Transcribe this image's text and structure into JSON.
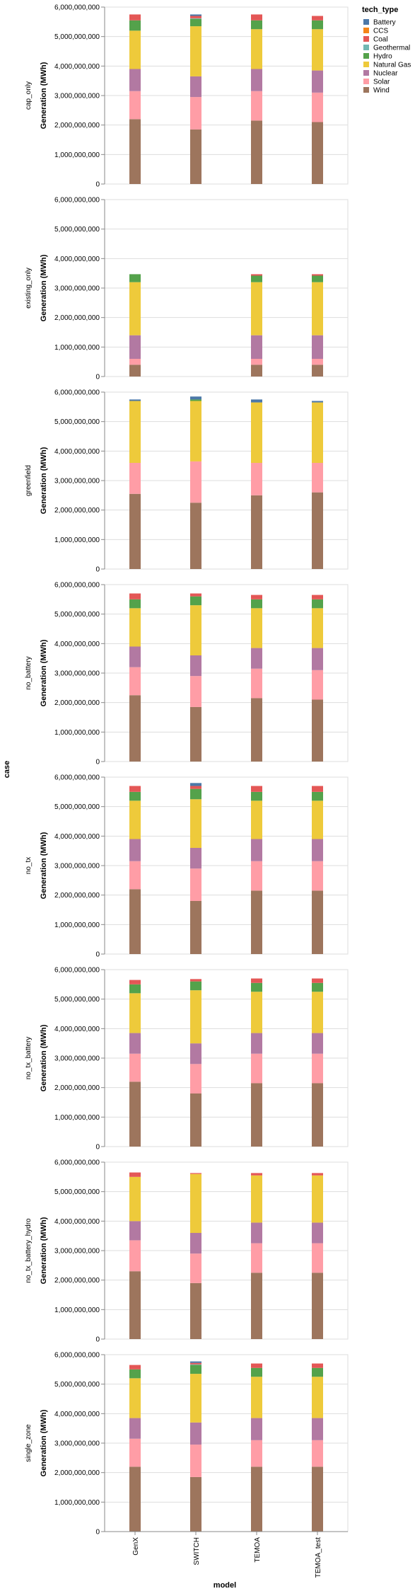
{
  "chart_data": {
    "type": "bar",
    "stacked": true,
    "faceted_by": "case",
    "x_title": "model",
    "y_title": "Generation (MWh)",
    "row_title": "case",
    "legend_title": "tech_type",
    "legend_position": "top-right",
    "grid": true,
    "ylim": [
      0,
      6000000000
    ],
    "y_ticks": [
      0,
      1000000000,
      2000000000,
      3000000000,
      4000000000,
      5000000000,
      6000000000
    ],
    "y_tick_labels": [
      "0",
      "1,000,000,000",
      "2,000,000,000",
      "3,000,000,000",
      "4,000,000,000",
      "5,000,000,000",
      "6,000,000,000"
    ],
    "categories": [
      "GenX",
      "SWITCH",
      "TEMOA",
      "TEMOA_test"
    ],
    "stack_order": [
      "Wind",
      "Solar",
      "Nuclear",
      "Natural Gas",
      "Hydro",
      "Geothermal",
      "Coal",
      "CCS",
      "Battery"
    ],
    "tech_types": [
      {
        "name": "Battery",
        "color": "#4c78a8"
      },
      {
        "name": "CCS",
        "color": "#f58518"
      },
      {
        "name": "Coal",
        "color": "#e45756"
      },
      {
        "name": "Geothermal",
        "color": "#72b7b2"
      },
      {
        "name": "Hydro",
        "color": "#54a24b"
      },
      {
        "name": "Natural Gas",
        "color": "#eeca3b"
      },
      {
        "name": "Nuclear",
        "color": "#b279a2"
      },
      {
        "name": "Solar",
        "color": "#ff9da6"
      },
      {
        "name": "Wind",
        "color": "#9d755d"
      }
    ],
    "facets": [
      {
        "case": "cap_only",
        "bars": [
          {
            "model": "GenX",
            "values": {
              "Wind": 2200000000,
              "Solar": 950000000,
              "Nuclear": 750000000,
              "Natural Gas": 1300000000,
              "Hydro": 350000000,
              "Geothermal": 0,
              "Coal": 200000000,
              "CCS": 0,
              "Battery": 0
            }
          },
          {
            "model": "SWITCH",
            "values": {
              "Wind": 1850000000,
              "Solar": 1100000000,
              "Nuclear": 700000000,
              "Natural Gas": 1700000000,
              "Hydro": 250000000,
              "Geothermal": 20000000,
              "Coal": 80000000,
              "CCS": 0,
              "Battery": 50000000
            }
          },
          {
            "model": "TEMOA",
            "values": {
              "Wind": 2150000000,
              "Solar": 1000000000,
              "Nuclear": 750000000,
              "Natural Gas": 1350000000,
              "Hydro": 300000000,
              "Geothermal": 0,
              "Coal": 200000000,
              "CCS": 0,
              "Battery": 0
            }
          },
          {
            "model": "TEMOA_test",
            "values": {
              "Wind": 2100000000,
              "Solar": 1000000000,
              "Nuclear": 750000000,
              "Natural Gas": 1400000000,
              "Hydro": 300000000,
              "Geothermal": 0,
              "Coal": 150000000,
              "CCS": 0,
              "Battery": 0
            }
          }
        ]
      },
      {
        "case": "existing_only",
        "bars": [
          {
            "model": "GenX",
            "values": {
              "Wind": 400000000,
              "Solar": 200000000,
              "Nuclear": 800000000,
              "Natural Gas": 1800000000,
              "Hydro": 270000000,
              "Geothermal": 0,
              "Coal": 0,
              "CCS": 0,
              "Battery": 0
            }
          },
          {
            "model": "SWITCH",
            "values": {
              "Wind": 0,
              "Solar": 0,
              "Nuclear": 0,
              "Natural Gas": 0,
              "Hydro": 0,
              "Geothermal": 0,
              "Coal": 0,
              "CCS": 0,
              "Battery": 0
            }
          },
          {
            "model": "TEMOA",
            "values": {
              "Wind": 400000000,
              "Solar": 200000000,
              "Nuclear": 800000000,
              "Natural Gas": 1800000000,
              "Hydro": 220000000,
              "Geothermal": 0,
              "Coal": 50000000,
              "CCS": 0,
              "Battery": 0
            }
          },
          {
            "model": "TEMOA_test",
            "values": {
              "Wind": 400000000,
              "Solar": 200000000,
              "Nuclear": 800000000,
              "Natural Gas": 1800000000,
              "Hydro": 220000000,
              "Geothermal": 0,
              "Coal": 50000000,
              "CCS": 0,
              "Battery": 0
            }
          }
        ]
      },
      {
        "case": "greenfield",
        "bars": [
          {
            "model": "GenX",
            "values": {
              "Wind": 2550000000,
              "Solar": 1050000000,
              "Nuclear": 0,
              "Natural Gas": 2100000000,
              "Hydro": 0,
              "Geothermal": 0,
              "Coal": 0,
              "CCS": 0,
              "Battery": 50000000
            }
          },
          {
            "model": "SWITCH",
            "values": {
              "Wind": 2250000000,
              "Solar": 1400000000,
              "Nuclear": 0,
              "Natural Gas": 2050000000,
              "Hydro": 50000000,
              "Geothermal": 0,
              "Coal": 0,
              "CCS": 0,
              "Battery": 100000000
            }
          },
          {
            "model": "TEMOA",
            "values": {
              "Wind": 2500000000,
              "Solar": 1100000000,
              "Nuclear": 0,
              "Natural Gas": 2050000000,
              "Hydro": 0,
              "Geothermal": 0,
              "Coal": 0,
              "CCS": 0,
              "Battery": 100000000
            }
          },
          {
            "model": "TEMOA_test",
            "values": {
              "Wind": 2600000000,
              "Solar": 1000000000,
              "Nuclear": 0,
              "Natural Gas": 2050000000,
              "Hydro": 0,
              "Geothermal": 0,
              "Coal": 0,
              "CCS": 0,
              "Battery": 50000000
            }
          }
        ]
      },
      {
        "case": "no_battery",
        "bars": [
          {
            "model": "GenX",
            "values": {
              "Wind": 2250000000,
              "Solar": 950000000,
              "Nuclear": 700000000,
              "Natural Gas": 1300000000,
              "Hydro": 300000000,
              "Geothermal": 0,
              "Coal": 200000000,
              "CCS": 0,
              "Battery": 0
            }
          },
          {
            "model": "SWITCH",
            "values": {
              "Wind": 1850000000,
              "Solar": 1050000000,
              "Nuclear": 700000000,
              "Natural Gas": 1700000000,
              "Hydro": 300000000,
              "Geothermal": 0,
              "Coal": 100000000,
              "CCS": 0,
              "Battery": 0
            }
          },
          {
            "model": "TEMOA",
            "values": {
              "Wind": 2150000000,
              "Solar": 1000000000,
              "Nuclear": 700000000,
              "Natural Gas": 1350000000,
              "Hydro": 300000000,
              "Geothermal": 0,
              "Coal": 150000000,
              "CCS": 0,
              "Battery": 0
            }
          },
          {
            "model": "TEMOA_test",
            "values": {
              "Wind": 2100000000,
              "Solar": 1000000000,
              "Nuclear": 750000000,
              "Natural Gas": 1350000000,
              "Hydro": 300000000,
              "Geothermal": 0,
              "Coal": 150000000,
              "CCS": 0,
              "Battery": 0
            }
          }
        ]
      },
      {
        "case": "no_tx",
        "bars": [
          {
            "model": "GenX",
            "values": {
              "Wind": 2200000000,
              "Solar": 950000000,
              "Nuclear": 750000000,
              "Natural Gas": 1300000000,
              "Hydro": 300000000,
              "Geothermal": 0,
              "Coal": 200000000,
              "CCS": 0,
              "Battery": 0
            }
          },
          {
            "model": "SWITCH",
            "values": {
              "Wind": 1800000000,
              "Solar": 1100000000,
              "Nuclear": 700000000,
              "Natural Gas": 1650000000,
              "Hydro": 350000000,
              "Geothermal": 0,
              "Coal": 100000000,
              "CCS": 0,
              "Battery": 100000000
            }
          },
          {
            "model": "TEMOA",
            "values": {
              "Wind": 2150000000,
              "Solar": 1000000000,
              "Nuclear": 750000000,
              "Natural Gas": 1300000000,
              "Hydro": 300000000,
              "Geothermal": 0,
              "Coal": 200000000,
              "CCS": 0,
              "Battery": 0
            }
          },
          {
            "model": "TEMOA_test",
            "values": {
              "Wind": 2150000000,
              "Solar": 1000000000,
              "Nuclear": 750000000,
              "Natural Gas": 1300000000,
              "Hydro": 300000000,
              "Geothermal": 0,
              "Coal": 200000000,
              "CCS": 0,
              "Battery": 0
            }
          }
        ]
      },
      {
        "case": "no_tx_battery",
        "bars": [
          {
            "model": "GenX",
            "values": {
              "Wind": 2200000000,
              "Solar": 950000000,
              "Nuclear": 700000000,
              "Natural Gas": 1350000000,
              "Hydro": 300000000,
              "Geothermal": 0,
              "Coal": 150000000,
              "CCS": 0,
              "Battery": 0
            }
          },
          {
            "model": "SWITCH",
            "values": {
              "Wind": 1800000000,
              "Solar": 1000000000,
              "Nuclear": 700000000,
              "Natural Gas": 1800000000,
              "Hydro": 300000000,
              "Geothermal": 0,
              "Coal": 80000000,
              "CCS": 0,
              "Battery": 0
            }
          },
          {
            "model": "TEMOA",
            "values": {
              "Wind": 2150000000,
              "Solar": 1000000000,
              "Nuclear": 700000000,
              "Natural Gas": 1400000000,
              "Hydro": 300000000,
              "Geothermal": 0,
              "Coal": 150000000,
              "CCS": 0,
              "Battery": 0
            }
          },
          {
            "model": "TEMOA_test",
            "values": {
              "Wind": 2150000000,
              "Solar": 1000000000,
              "Nuclear": 700000000,
              "Natural Gas": 1400000000,
              "Hydro": 300000000,
              "Geothermal": 0,
              "Coal": 150000000,
              "CCS": 0,
              "Battery": 0
            }
          }
        ]
      },
      {
        "case": "no_tx_battery_hydro",
        "bars": [
          {
            "model": "GenX",
            "values": {
              "Wind": 2300000000,
              "Solar": 1050000000,
              "Nuclear": 650000000,
              "Natural Gas": 1500000000,
              "Hydro": 0,
              "Geothermal": 0,
              "Coal": 150000000,
              "CCS": 0,
              "Battery": 0
            }
          },
          {
            "model": "SWITCH",
            "values": {
              "Wind": 1900000000,
              "Solar": 1000000000,
              "Nuclear": 700000000,
              "Natural Gas": 2000000000,
              "Hydro": 0,
              "Geothermal": 0,
              "Coal": 30000000,
              "CCS": 0,
              "Battery": 0
            }
          },
          {
            "model": "TEMOA",
            "values": {
              "Wind": 2250000000,
              "Solar": 1000000000,
              "Nuclear": 700000000,
              "Natural Gas": 1600000000,
              "Hydro": 0,
              "Geothermal": 0,
              "Coal": 80000000,
              "CCS": 0,
              "Battery": 0
            }
          },
          {
            "model": "TEMOA_test",
            "values": {
              "Wind": 2250000000,
              "Solar": 1000000000,
              "Nuclear": 700000000,
              "Natural Gas": 1600000000,
              "Hydro": 0,
              "Geothermal": 0,
              "Coal": 80000000,
              "CCS": 0,
              "Battery": 0
            }
          }
        ]
      },
      {
        "case": "single_zone",
        "bars": [
          {
            "model": "GenX",
            "values": {
              "Wind": 2200000000,
              "Solar": 950000000,
              "Nuclear": 700000000,
              "Natural Gas": 1350000000,
              "Hydro": 300000000,
              "Geothermal": 0,
              "Coal": 150000000,
              "CCS": 0,
              "Battery": 0
            }
          },
          {
            "model": "SWITCH",
            "values": {
              "Wind": 1850000000,
              "Solar": 1100000000,
              "Nuclear": 750000000,
              "Natural Gas": 1650000000,
              "Hydro": 300000000,
              "Geothermal": 20000000,
              "Coal": 50000000,
              "CCS": 0,
              "Battery": 50000000
            }
          },
          {
            "model": "TEMOA",
            "values": {
              "Wind": 2200000000,
              "Solar": 900000000,
              "Nuclear": 750000000,
              "Natural Gas": 1400000000,
              "Hydro": 300000000,
              "Geothermal": 0,
              "Coal": 150000000,
              "CCS": 0,
              "Battery": 0
            }
          },
          {
            "model": "TEMOA_test",
            "values": {
              "Wind": 2200000000,
              "Solar": 900000000,
              "Nuclear": 750000000,
              "Natural Gas": 1400000000,
              "Hydro": 300000000,
              "Geothermal": 0,
              "Coal": 150000000,
              "CCS": 0,
              "Battery": 0
            }
          }
        ]
      }
    ]
  }
}
